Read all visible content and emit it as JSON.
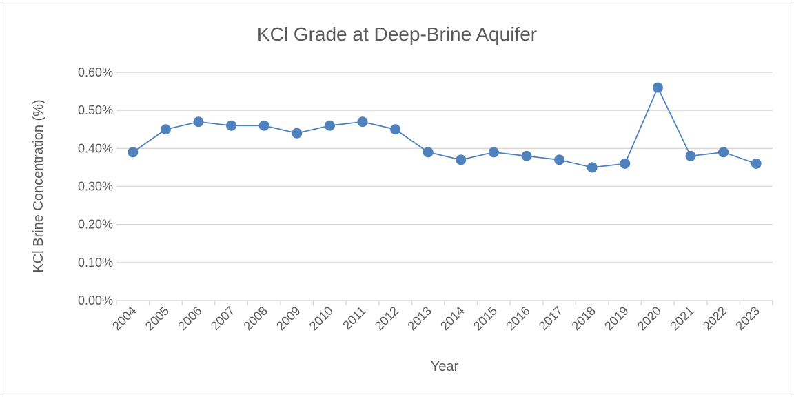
{
  "chart_data": {
    "type": "line",
    "title": "KCl Grade at Deep-Brine Aquifer",
    "xlabel": "Year",
    "ylabel": "KCl Brine Concentration (%)",
    "categories": [
      "2004",
      "2005",
      "2006",
      "2007",
      "2008",
      "2009",
      "2010",
      "2011",
      "2012",
      "2013",
      "2014",
      "2015",
      "2016",
      "2017",
      "2018",
      "2019",
      "2020",
      "2021",
      "2022",
      "2023"
    ],
    "series": [
      {
        "name": "KCl Brine Concentration",
        "values": [
          0.39,
          0.45,
          0.47,
          0.46,
          0.46,
          0.44,
          0.46,
          0.47,
          0.45,
          0.39,
          0.37,
          0.39,
          0.38,
          0.37,
          0.35,
          0.36,
          0.56,
          0.38,
          0.39,
          0.36
        ],
        "color": "#4f81bd"
      }
    ],
    "ylim": [
      0,
      0.6
    ],
    "yticks": [
      0,
      0.1,
      0.2,
      0.3,
      0.4,
      0.5,
      0.6
    ],
    "ytick_labels": [
      "0.00%",
      "0.10%",
      "0.20%",
      "0.30%",
      "0.40%",
      "0.50%",
      "0.60%"
    ],
    "grid": true,
    "legend": "none"
  }
}
